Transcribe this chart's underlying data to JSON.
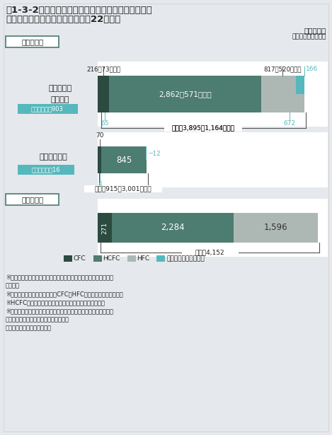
{
  "title_line1": "図1-3-2　業務用冷凍空調機器・カーエアコンからの",
  "title_line2": "フロン類の回収・破壊量等（平成22年度）",
  "unit_text": "単位：トン",
  "unit_subtext": "（）は回収した台数",
  "bg_color": "#e5e8ec",
  "white": "#ffffff",
  "color_cfc": "#2b4a40",
  "color_hcfc": "#4d7c70",
  "color_hfc": "#adb8b5",
  "color_recycled": "#56b8bc",
  "kaishuu_label": "回収した量",
  "hakai_label": "破壊した量",
  "legend_items": [
    "CFC",
    "HCFC",
    "HFC",
    "うち再利用等された量"
  ],
  "gyoumu_label_line1": "業務用冷凍",
  "gyoumu_label_line2": "空調機器",
  "gyoumu_recycle": "再利用合計：903",
  "car_label": "カーエアコン",
  "car_recycle": "再利用合計：16",
  "gyoumu_cfc": 216,
  "gyoumu_hcfc": 2862,
  "gyoumu_hfc": 817,
  "gyoumu_recycled": 166,
  "gyoumu_recycled_below_cfc": 65,
  "gyoumu_recycled_below_hfc": 672,
  "gyoumu_cfc_label": "216（73千台）",
  "gyoumu_hcfc_label": "2,862（571千台）",
  "gyoumu_hfc_label": "817（520千台）",
  "gyoumu_recycled_label": "166",
  "gyoumu_total_label": "合計：3,895（1,164千台）",
  "car_cfc": 70,
  "car_hcfc": 845,
  "car_recycled_hcfc": 12,
  "car_recycled_below": 4,
  "car_cfc_label": "70",
  "car_hcfc_label": "845",
  "car_recycled_label": "12",
  "car_recycled_below_label": "4",
  "car_total_label": "合計：915（3,001千台）",
  "hakai_cfc": 271,
  "hakai_hcfc": 2284,
  "hakai_hfc": 1596,
  "hakai_cfc_label": "271",
  "hakai_hcfc_label": "2,284",
  "hakai_hfc_label": "1,596",
  "hakai_total_label": "合計：4,152",
  "footnotes": [
    "※小数点未満を四捨五入のため、数値の和は必ずしも合計に一致し",
    "　ない。",
    "※カーエアコンの回収台数は、CFC、HFC別に集計されていない。",
    "※HCFCはカーエアコンの冷媒として用いられていない。",
    "※破壊した量は、業務用冷凍空調機器及びカーエアコンから回収さ",
    "　れたフロン類の合計の破壊量である。",
    "（出典）経済産業省、環境省"
  ]
}
